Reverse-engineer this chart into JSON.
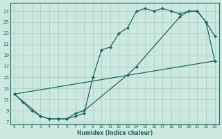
{
  "xlabel": "Humidex (Indice chaleur)",
  "bg_color": "#cce8e0",
  "grid_color": "#aaccc4",
  "line_color": "#1a6b5a",
  "xlim": [
    -0.5,
    23.5
  ],
  "ylim": [
    6.5,
    28.5
  ],
  "xticks": [
    0,
    1,
    2,
    3,
    4,
    5,
    6,
    7,
    8,
    9,
    10,
    11,
    12,
    13,
    14,
    15,
    16,
    17,
    18,
    19,
    20,
    21,
    22,
    23
  ],
  "yticks": [
    7,
    9,
    11,
    13,
    15,
    17,
    19,
    21,
    23,
    25,
    27
  ],
  "curve1_x": [
    0,
    1,
    2,
    3,
    4,
    5,
    6,
    7,
    8,
    9,
    10,
    11,
    12,
    13,
    14,
    15,
    16,
    17,
    18,
    19,
    20,
    21,
    22,
    23
  ],
  "curve1_y": [
    12,
    10.5,
    9,
    8,
    7.5,
    7.5,
    7.5,
    8,
    8.5,
    15,
    20,
    20.5,
    23,
    24,
    27,
    27.5,
    27,
    27.5,
    27,
    26.5,
    27,
    27,
    25,
    22.5
  ],
  "curve2_x": [
    0,
    3,
    4,
    5,
    6,
    7,
    8,
    13,
    14,
    19,
    20,
    21,
    22,
    23
  ],
  "curve2_y": [
    12,
    8,
    7.5,
    7.5,
    7.5,
    8.5,
    9,
    15.5,
    17,
    26,
    27,
    27,
    25,
    18
  ],
  "line3_x": [
    0,
    23
  ],
  "line3_y": [
    12,
    18
  ]
}
